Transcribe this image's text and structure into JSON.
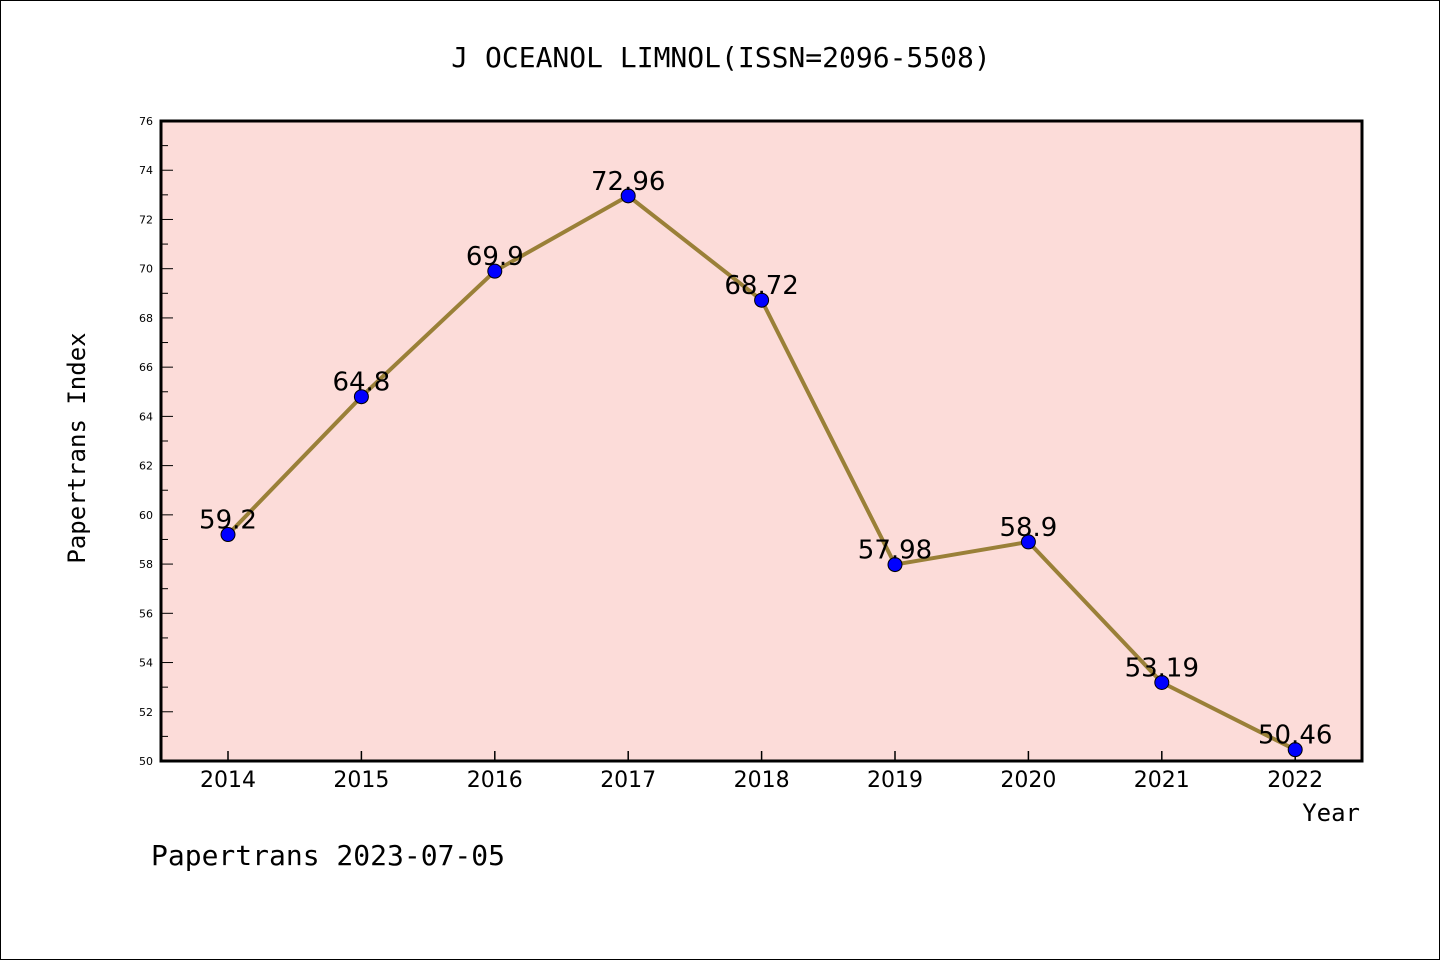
{
  "chart_data": {
    "type": "line",
    "title": "J OCEANOL LIMNOL(ISSN=2096-5508)",
    "xlabel": "Year",
    "ylabel": "Papertrans Index",
    "categories": [
      "2014",
      "2015",
      "2016",
      "2017",
      "2018",
      "2019",
      "2020",
      "2021",
      "2022"
    ],
    "series": [
      {
        "values": [
          59.2,
          64.8,
          69.9,
          72.96,
          68.72,
          57.98,
          58.9,
          53.19,
          50.46
        ],
        "labels": [
          "59.2",
          "64.8",
          "69.9",
          "72.96",
          "68.72",
          "57.98",
          "58.9",
          "53.19",
          "50.46"
        ]
      }
    ],
    "ylim": [
      50,
      76
    ],
    "yticks": [
      "50",
      "52",
      "54",
      "56",
      "58",
      "60",
      "62",
      "64",
      "66",
      "68",
      "70",
      "72",
      "74",
      "76"
    ],
    "grid": false,
    "colors": {
      "plot_background": "#fcdcd9",
      "line": "#9a8038",
      "marker": "#0000ff"
    }
  },
  "footer": "Papertrans 2023-07-05"
}
